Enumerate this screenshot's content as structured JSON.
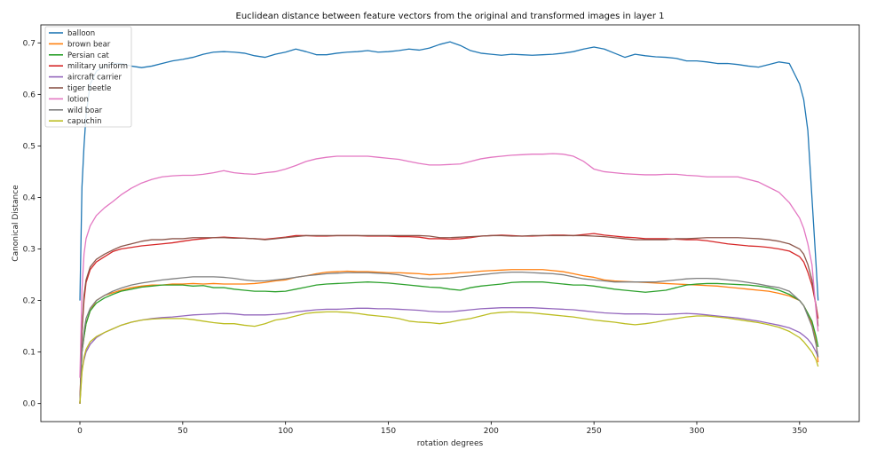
{
  "chart_data": {
    "type": "line",
    "title": "Euclidean distance between feature vectors from the original and transformed images in layer 1",
    "xlabel": "rotation degrees",
    "ylabel": "Canonical Distance",
    "xlim": [
      -19,
      379
    ],
    "ylim": [
      -0.035,
      0.735
    ],
    "xticks": [
      0,
      50,
      100,
      150,
      200,
      250,
      300,
      350
    ],
    "yticks": [
      0.0,
      0.1,
      0.2,
      0.3,
      0.4,
      0.5,
      0.6,
      0.7
    ],
    "xtick_labels": [
      "0",
      "50",
      "100",
      "150",
      "200",
      "250",
      "300",
      "350"
    ],
    "ytick_labels": [
      "0.0",
      "0.1",
      "0.2",
      "0.3",
      "0.4",
      "0.5",
      "0.6",
      "0.7"
    ],
    "grid": false,
    "legend_position": "top-left",
    "x": [
      0,
      1,
      2,
      3,
      5,
      8,
      12,
      16,
      20,
      25,
      30,
      35,
      40,
      45,
      50,
      55,
      60,
      65,
      70,
      75,
      80,
      85,
      90,
      95,
      100,
      105,
      110,
      115,
      120,
      125,
      130,
      135,
      140,
      145,
      150,
      155,
      160,
      165,
      170,
      175,
      180,
      185,
      190,
      195,
      200,
      205,
      210,
      215,
      220,
      225,
      230,
      235,
      240,
      245,
      250,
      255,
      260,
      265,
      270,
      275,
      280,
      285,
      290,
      295,
      300,
      305,
      310,
      315,
      320,
      325,
      330,
      335,
      340,
      345,
      350,
      352,
      354,
      356,
      358,
      359
    ],
    "series": [
      {
        "name": "balloon",
        "color": "#1f77b4",
        "values": [
          0.2,
          0.42,
          0.5,
          0.56,
          0.62,
          0.645,
          0.655,
          0.66,
          0.66,
          0.655,
          0.652,
          0.655,
          0.66,
          0.665,
          0.668,
          0.672,
          0.678,
          0.682,
          0.683,
          0.682,
          0.68,
          0.675,
          0.672,
          0.678,
          0.682,
          0.688,
          0.683,
          0.677,
          0.677,
          0.68,
          0.682,
          0.683,
          0.685,
          0.682,
          0.683,
          0.685,
          0.688,
          0.686,
          0.69,
          0.697,
          0.702,
          0.695,
          0.685,
          0.68,
          0.678,
          0.676,
          0.678,
          0.677,
          0.676,
          0.677,
          0.678,
          0.68,
          0.683,
          0.688,
          0.692,
          0.688,
          0.68,
          0.672,
          0.678,
          0.675,
          0.673,
          0.672,
          0.67,
          0.665,
          0.665,
          0.663,
          0.66,
          0.66,
          0.658,
          0.655,
          0.653,
          0.658,
          0.663,
          0.66,
          0.62,
          0.59,
          0.53,
          0.4,
          0.27,
          0.2
        ]
      },
      {
        "name": "brown bear",
        "color": "#ff7f0e",
        "values": [
          0.0,
          0.1,
          0.13,
          0.155,
          0.18,
          0.2,
          0.21,
          0.215,
          0.22,
          0.225,
          0.228,
          0.23,
          0.23,
          0.232,
          0.232,
          0.233,
          0.232,
          0.233,
          0.232,
          0.232,
          0.232,
          0.233,
          0.235,
          0.238,
          0.24,
          0.245,
          0.248,
          0.252,
          0.255,
          0.256,
          0.257,
          0.256,
          0.256,
          0.255,
          0.254,
          0.254,
          0.253,
          0.252,
          0.25,
          0.251,
          0.252,
          0.254,
          0.255,
          0.257,
          0.258,
          0.259,
          0.26,
          0.26,
          0.26,
          0.26,
          0.258,
          0.256,
          0.252,
          0.248,
          0.245,
          0.24,
          0.238,
          0.237,
          0.236,
          0.235,
          0.234,
          0.233,
          0.232,
          0.231,
          0.23,
          0.229,
          0.228,
          0.226,
          0.224,
          0.222,
          0.22,
          0.218,
          0.214,
          0.209,
          0.2,
          0.19,
          0.175,
          0.155,
          0.12,
          0.08
        ]
      },
      {
        "name": "Persian cat",
        "color": "#2ca02c",
        "values": [
          0.0,
          0.1,
          0.13,
          0.155,
          0.18,
          0.195,
          0.205,
          0.212,
          0.218,
          0.222,
          0.226,
          0.228,
          0.23,
          0.23,
          0.23,
          0.228,
          0.229,
          0.225,
          0.225,
          0.222,
          0.22,
          0.218,
          0.218,
          0.217,
          0.218,
          0.222,
          0.226,
          0.23,
          0.232,
          0.233,
          0.234,
          0.235,
          0.236,
          0.235,
          0.234,
          0.232,
          0.23,
          0.228,
          0.226,
          0.225,
          0.222,
          0.22,
          0.225,
          0.228,
          0.23,
          0.232,
          0.235,
          0.236,
          0.236,
          0.236,
          0.234,
          0.232,
          0.23,
          0.23,
          0.228,
          0.225,
          0.222,
          0.22,
          0.218,
          0.216,
          0.218,
          0.22,
          0.225,
          0.23,
          0.232,
          0.233,
          0.233,
          0.232,
          0.231,
          0.23,
          0.228,
          0.225,
          0.22,
          0.212,
          0.2,
          0.19,
          0.175,
          0.16,
          0.13,
          0.11
        ]
      },
      {
        "name": "military uniform",
        "color": "#d62728",
        "values": [
          0.0,
          0.14,
          0.2,
          0.235,
          0.26,
          0.275,
          0.285,
          0.295,
          0.3,
          0.303,
          0.306,
          0.308,
          0.31,
          0.312,
          0.315,
          0.318,
          0.32,
          0.322,
          0.323,
          0.322,
          0.321,
          0.32,
          0.319,
          0.321,
          0.323,
          0.326,
          0.326,
          0.325,
          0.325,
          0.326,
          0.326,
          0.326,
          0.325,
          0.325,
          0.325,
          0.324,
          0.324,
          0.323,
          0.32,
          0.32,
          0.319,
          0.32,
          0.322,
          0.325,
          0.326,
          0.327,
          0.326,
          0.325,
          0.325,
          0.326,
          0.327,
          0.327,
          0.326,
          0.328,
          0.33,
          0.327,
          0.325,
          0.323,
          0.322,
          0.32,
          0.32,
          0.32,
          0.319,
          0.318,
          0.318,
          0.316,
          0.313,
          0.31,
          0.308,
          0.306,
          0.305,
          0.303,
          0.3,
          0.296,
          0.285,
          0.275,
          0.255,
          0.23,
          0.19,
          0.165
        ]
      },
      {
        "name": "aircraft carrier",
        "color": "#9467bd",
        "values": [
          0.0,
          0.065,
          0.085,
          0.1,
          0.115,
          0.128,
          0.138,
          0.145,
          0.152,
          0.158,
          0.162,
          0.165,
          0.167,
          0.168,
          0.17,
          0.172,
          0.173,
          0.174,
          0.175,
          0.174,
          0.172,
          0.172,
          0.172,
          0.173,
          0.175,
          0.178,
          0.18,
          0.182,
          0.183,
          0.183,
          0.184,
          0.185,
          0.185,
          0.184,
          0.184,
          0.183,
          0.182,
          0.181,
          0.179,
          0.178,
          0.178,
          0.18,
          0.182,
          0.184,
          0.185,
          0.186,
          0.186,
          0.186,
          0.186,
          0.185,
          0.184,
          0.183,
          0.182,
          0.18,
          0.178,
          0.176,
          0.175,
          0.174,
          0.174,
          0.174,
          0.173,
          0.173,
          0.174,
          0.175,
          0.174,
          0.172,
          0.17,
          0.168,
          0.166,
          0.163,
          0.16,
          0.156,
          0.152,
          0.147,
          0.138,
          0.132,
          0.125,
          0.115,
          0.1,
          0.09
        ]
      },
      {
        "name": "tiger beetle",
        "color": "#8c564b",
        "values": [
          0.0,
          0.14,
          0.21,
          0.24,
          0.265,
          0.28,
          0.29,
          0.298,
          0.305,
          0.31,
          0.315,
          0.318,
          0.318,
          0.32,
          0.32,
          0.322,
          0.322,
          0.322,
          0.322,
          0.321,
          0.321,
          0.32,
          0.318,
          0.32,
          0.322,
          0.324,
          0.326,
          0.326,
          0.326,
          0.326,
          0.326,
          0.326,
          0.326,
          0.326,
          0.326,
          0.326,
          0.326,
          0.326,
          0.325,
          0.322,
          0.322,
          0.323,
          0.324,
          0.325,
          0.326,
          0.326,
          0.325,
          0.325,
          0.326,
          0.326,
          0.326,
          0.326,
          0.326,
          0.326,
          0.325,
          0.324,
          0.322,
          0.32,
          0.318,
          0.318,
          0.318,
          0.318,
          0.32,
          0.32,
          0.321,
          0.322,
          0.322,
          0.322,
          0.322,
          0.321,
          0.32,
          0.318,
          0.315,
          0.31,
          0.3,
          0.29,
          0.27,
          0.24,
          0.19,
          0.15
        ]
      },
      {
        "name": "lotion",
        "color": "#e377c2",
        "values": [
          0.05,
          0.22,
          0.29,
          0.32,
          0.345,
          0.365,
          0.38,
          0.392,
          0.405,
          0.418,
          0.428,
          0.435,
          0.44,
          0.442,
          0.443,
          0.443,
          0.445,
          0.448,
          0.452,
          0.448,
          0.446,
          0.445,
          0.448,
          0.45,
          0.455,
          0.462,
          0.47,
          0.475,
          0.478,
          0.48,
          0.48,
          0.48,
          0.48,
          0.478,
          0.476,
          0.474,
          0.47,
          0.466,
          0.463,
          0.463,
          0.464,
          0.465,
          0.47,
          0.475,
          0.478,
          0.48,
          0.482,
          0.483,
          0.484,
          0.484,
          0.485,
          0.484,
          0.48,
          0.47,
          0.455,
          0.45,
          0.448,
          0.446,
          0.445,
          0.444,
          0.444,
          0.445,
          0.445,
          0.443,
          0.442,
          0.44,
          0.44,
          0.44,
          0.44,
          0.435,
          0.43,
          0.42,
          0.41,
          0.39,
          0.36,
          0.34,
          0.31,
          0.27,
          0.18,
          0.14
        ]
      },
      {
        "name": "wild boar",
        "color": "#7f7f7f",
        "values": [
          0.0,
          0.1,
          0.14,
          0.165,
          0.185,
          0.2,
          0.21,
          0.218,
          0.224,
          0.23,
          0.234,
          0.237,
          0.24,
          0.242,
          0.244,
          0.246,
          0.246,
          0.246,
          0.245,
          0.243,
          0.24,
          0.238,
          0.238,
          0.24,
          0.242,
          0.245,
          0.248,
          0.25,
          0.252,
          0.253,
          0.254,
          0.254,
          0.254,
          0.253,
          0.252,
          0.25,
          0.246,
          0.243,
          0.242,
          0.243,
          0.244,
          0.246,
          0.248,
          0.25,
          0.252,
          0.254,
          0.255,
          0.255,
          0.254,
          0.253,
          0.252,
          0.25,
          0.246,
          0.242,
          0.24,
          0.238,
          0.236,
          0.236,
          0.236,
          0.236,
          0.236,
          0.238,
          0.24,
          0.242,
          0.243,
          0.243,
          0.242,
          0.24,
          0.238,
          0.235,
          0.232,
          0.228,
          0.225,
          0.218,
          0.2,
          0.19,
          0.17,
          0.15,
          0.115,
          0.09
        ]
      },
      {
        "name": "capuchin",
        "color": "#bcbd22",
        "values": [
          0.0,
          0.06,
          0.09,
          0.105,
          0.12,
          0.13,
          0.138,
          0.145,
          0.152,
          0.158,
          0.162,
          0.164,
          0.165,
          0.165,
          0.165,
          0.163,
          0.16,
          0.157,
          0.155,
          0.155,
          0.152,
          0.15,
          0.155,
          0.162,
          0.165,
          0.17,
          0.175,
          0.177,
          0.178,
          0.178,
          0.177,
          0.175,
          0.172,
          0.17,
          0.168,
          0.165,
          0.16,
          0.158,
          0.157,
          0.155,
          0.158,
          0.162,
          0.165,
          0.17,
          0.175,
          0.177,
          0.178,
          0.177,
          0.176,
          0.174,
          0.172,
          0.17,
          0.168,
          0.165,
          0.162,
          0.16,
          0.158,
          0.155,
          0.153,
          0.155,
          0.158,
          0.162,
          0.165,
          0.168,
          0.17,
          0.17,
          0.168,
          0.166,
          0.163,
          0.16,
          0.157,
          0.153,
          0.148,
          0.14,
          0.128,
          0.12,
          0.11,
          0.1,
          0.085,
          0.072
        ]
      }
    ]
  }
}
